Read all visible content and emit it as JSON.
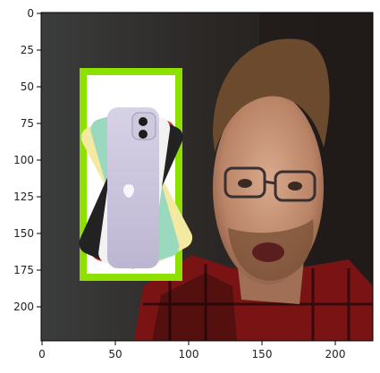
{
  "axes": {
    "x_ticks": [
      "0",
      "50",
      "100",
      "150",
      "200"
    ],
    "y_ticks": [
      "0",
      "25",
      "50",
      "75",
      "100",
      "125",
      "150",
      "175",
      "200"
    ]
  },
  "image": {
    "description_colors": {
      "background": "#2f2f2f",
      "highlight_box": "#8ee000",
      "shirt_red": "#8a1a1a",
      "skin": "#c99a7e",
      "hair": "#6b4a2e"
    },
    "icons": [
      "phone-product-icon"
    ]
  }
}
